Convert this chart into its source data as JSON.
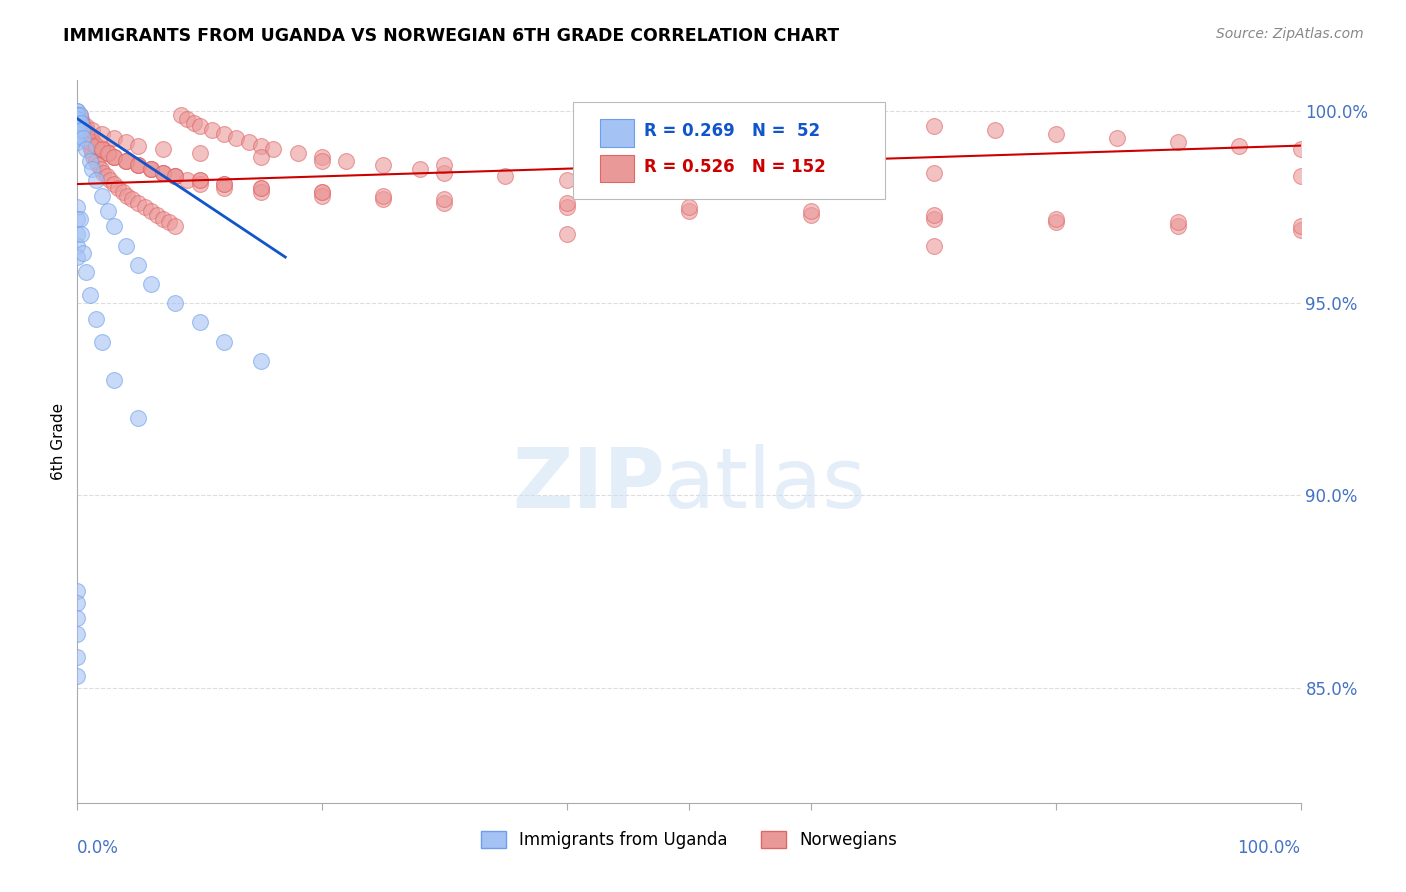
{
  "title": "IMMIGRANTS FROM UGANDA VS NORWEGIAN 6TH GRADE CORRELATION CHART",
  "source": "Source: ZipAtlas.com",
  "ylabel": "6th Grade",
  "xlim": [
    0.0,
    1.0
  ],
  "ylim": [
    0.82,
    1.008
  ],
  "y_ticks": [
    0.85,
    0.9,
    0.95,
    1.0
  ],
  "uganda_color": "#a4c2f4",
  "norwegian_color": "#ea9999",
  "uganda_edge": "#6d9eeb",
  "norwegian_edge": "#e06666",
  "trend_uganda": "#1155cc",
  "trend_norwegian": "#cc0000",
  "uganda_alpha": 0.6,
  "norwegian_alpha": 0.6,
  "marker_size": 130,
  "uganda_x": [
    0.0,
    0.0,
    0.0,
    0.0,
    0.0,
    0.0,
    0.0,
    0.0,
    0.0,
    0.0,
    0.0,
    0.0,
    0.0,
    0.0,
    0.002,
    0.003,
    0.004,
    0.005,
    0.007,
    0.01,
    0.012,
    0.015,
    0.02,
    0.025,
    0.03,
    0.04,
    0.05,
    0.06,
    0.08,
    0.1,
    0.12,
    0.15,
    0.0,
    0.0,
    0.0,
    0.0,
    0.0,
    0.002,
    0.003,
    0.005,
    0.007,
    0.01,
    0.015,
    0.02,
    0.03,
    0.05,
    0.0,
    0.0,
    0.0,
    0.0,
    0.0,
    0.0
  ],
  "uganda_y": [
    1.0,
    1.0,
    0.999,
    0.999,
    0.998,
    0.998,
    0.997,
    0.997,
    0.996,
    0.996,
    0.995,
    0.994,
    0.993,
    0.992,
    0.999,
    0.997,
    0.995,
    0.993,
    0.99,
    0.987,
    0.985,
    0.982,
    0.978,
    0.974,
    0.97,
    0.965,
    0.96,
    0.955,
    0.95,
    0.945,
    0.94,
    0.935,
    0.975,
    0.972,
    0.968,
    0.965,
    0.962,
    0.972,
    0.968,
    0.963,
    0.958,
    0.952,
    0.946,
    0.94,
    0.93,
    0.92,
    0.875,
    0.872,
    0.868,
    0.864,
    0.858,
    0.853
  ],
  "norwegian_x": [
    0.0,
    0.0,
    0.002,
    0.003,
    0.004,
    0.005,
    0.006,
    0.007,
    0.008,
    0.009,
    0.01,
    0.011,
    0.012,
    0.013,
    0.015,
    0.017,
    0.019,
    0.021,
    0.024,
    0.027,
    0.03,
    0.033,
    0.037,
    0.041,
    0.045,
    0.05,
    0.055,
    0.06,
    0.065,
    0.07,
    0.075,
    0.08,
    0.085,
    0.09,
    0.095,
    0.1,
    0.11,
    0.12,
    0.13,
    0.14,
    0.15,
    0.16,
    0.18,
    0.2,
    0.22,
    0.25,
    0.28,
    0.3,
    0.35,
    0.4,
    0.45,
    0.5,
    0.55,
    0.6,
    0.65,
    0.7,
    0.75,
    0.8,
    0.85,
    0.9,
    0.95,
    1.0,
    0.003,
    0.005,
    0.007,
    0.009,
    0.011,
    0.013,
    0.015,
    0.02,
    0.025,
    0.03,
    0.04,
    0.05,
    0.06,
    0.07,
    0.08,
    0.1,
    0.12,
    0.15,
    0.2,
    0.003,
    0.005,
    0.007,
    0.01,
    0.013,
    0.016,
    0.02,
    0.025,
    0.03,
    0.04,
    0.05,
    0.06,
    0.07,
    0.08,
    0.09,
    0.1,
    0.12,
    0.15,
    0.2,
    0.25,
    0.3,
    0.4,
    0.5,
    0.6,
    0.7,
    0.8,
    0.9,
    1.0,
    0.003,
    0.006,
    0.01,
    0.015,
    0.02,
    0.025,
    0.03,
    0.04,
    0.05,
    0.06,
    0.07,
    0.08,
    0.1,
    0.12,
    0.15,
    0.2,
    0.25,
    0.3,
    0.4,
    0.5,
    0.6,
    0.7,
    0.8,
    0.9,
    1.0,
    0.4,
    0.7,
    0.0,
    0.003,
    0.007,
    0.012,
    0.02,
    0.03,
    0.04,
    0.05,
    0.07,
    0.1,
    0.15,
    0.2,
    0.3,
    0.5,
    0.7,
    1.0
  ],
  "norwegian_y": [
    0.998,
    0.996,
    0.999,
    0.998,
    0.997,
    0.996,
    0.995,
    0.994,
    0.993,
    0.992,
    0.991,
    0.99,
    0.989,
    0.988,
    0.987,
    0.986,
    0.985,
    0.984,
    0.983,
    0.982,
    0.981,
    0.98,
    0.979,
    0.978,
    0.977,
    0.976,
    0.975,
    0.974,
    0.973,
    0.972,
    0.971,
    0.97,
    0.999,
    0.998,
    0.997,
    0.996,
    0.995,
    0.994,
    0.993,
    0.992,
    0.991,
    0.99,
    0.989,
    0.988,
    0.987,
    0.986,
    0.985,
    0.984,
    0.983,
    0.982,
    0.981,
    0.98,
    0.999,
    0.998,
    0.997,
    0.996,
    0.995,
    0.994,
    0.993,
    0.992,
    0.991,
    0.99,
    0.997,
    0.996,
    0.995,
    0.994,
    0.993,
    0.992,
    0.991,
    0.99,
    0.989,
    0.988,
    0.987,
    0.986,
    0.985,
    0.984,
    0.983,
    0.982,
    0.981,
    0.98,
    0.979,
    0.996,
    0.995,
    0.994,
    0.993,
    0.992,
    0.991,
    0.99,
    0.989,
    0.988,
    0.987,
    0.986,
    0.985,
    0.984,
    0.983,
    0.982,
    0.981,
    0.98,
    0.979,
    0.978,
    0.977,
    0.976,
    0.975,
    0.974,
    0.973,
    0.972,
    0.971,
    0.97,
    0.969,
    0.994,
    0.993,
    0.992,
    0.991,
    0.99,
    0.989,
    0.988,
    0.987,
    0.986,
    0.985,
    0.984,
    0.983,
    0.982,
    0.981,
    0.98,
    0.979,
    0.978,
    0.977,
    0.976,
    0.975,
    0.974,
    0.973,
    0.972,
    0.971,
    0.97,
    0.968,
    0.965,
    0.998,
    0.997,
    0.996,
    0.995,
    0.994,
    0.993,
    0.992,
    0.991,
    0.99,
    0.989,
    0.988,
    0.987,
    0.986,
    0.985,
    0.984,
    0.983
  ],
  "ug_trend_x0": 0.0,
  "ug_trend_x1": 0.17,
  "ug_trend_y0": 0.998,
  "ug_trend_y1": 0.962,
  "nor_trend_x0": 0.0,
  "nor_trend_x1": 1.0,
  "nor_trend_y0": 0.981,
  "nor_trend_y1": 0.991
}
